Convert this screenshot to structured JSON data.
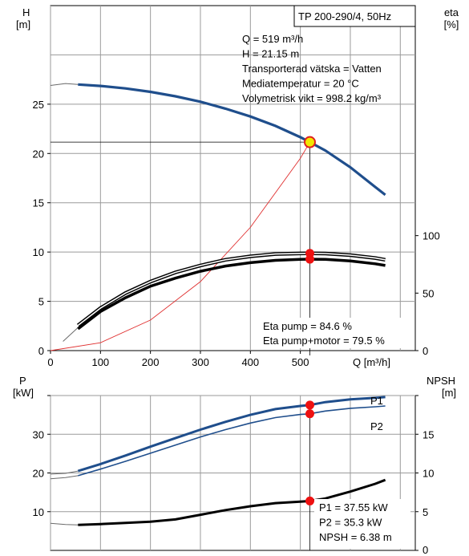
{
  "chart_data": [
    {
      "type": "line",
      "title": "TP 200-290/4, 50Hz",
      "xlabel": "Q [m³/h]",
      "ylabel_left_top": "H",
      "ylabel_left_unit": "[m]",
      "ylabel_right_top": "eta",
      "ylabel_right_unit": "[%]",
      "xlim": [
        0,
        730
      ],
      "ylim": [
        0,
        35
      ],
      "ylim_right": [
        0,
        300
      ],
      "x_ticks": [
        "0",
        "100",
        "200",
        "300",
        "400",
        "500",
        "Q [m³/h]"
      ],
      "y_ticks": [
        "0",
        "5",
        "10",
        "15",
        "20",
        "25"
      ],
      "y_ticks_right": [
        "0",
        "50",
        "100"
      ],
      "grid": true,
      "info_lines": [
        "Q = 519 m³/h",
        "H = 21.15 m",
        "Transporterad vätska = Vatten",
        "Mediatemperatur = 20 °C",
        "Volymetrisk vikt = 998.2 kg/m³"
      ],
      "eta_lines": [
        "Eta pump = 84.6 %",
        "Eta pump+motor = 79.5 %"
      ],
      "series": [
        {
          "name": "",
          "axis": "left",
          "color": "#1f4e8c",
          "x": [
            55,
            100,
            150,
            200,
            250,
            300,
            350,
            400,
            450,
            500,
            519,
            550,
            600,
            650,
            670
          ],
          "y": [
            27.0,
            26.85,
            26.6,
            26.25,
            25.8,
            25.25,
            24.55,
            23.75,
            22.8,
            21.65,
            21.15,
            20.3,
            18.6,
            16.6,
            15.8
          ]
        },
        {
          "name": "",
          "axis": "right",
          "color": "#000000",
          "x": [
            55,
            100,
            150,
            200,
            250,
            300,
            350,
            400,
            450,
            500,
            519,
            550,
            600,
            650,
            670
          ],
          "y": [
            22,
            37,
            50,
            60,
            68,
            74,
            79,
            82,
            84,
            84.5,
            84.6,
            84.4,
            83,
            80.5,
            79
          ]
        },
        {
          "name": "",
          "axis": "right",
          "color": "#000000",
          "x": [
            55,
            100,
            150,
            200,
            250,
            300,
            350,
            400,
            450,
            500,
            519,
            550,
            600,
            650,
            670
          ],
          "y": [
            19,
            34,
            46,
            56,
            63,
            69,
            73.5,
            76.5,
            78.5,
            79.4,
            79.5,
            79.3,
            78,
            75.5,
            74
          ]
        }
      ],
      "faint_extension": {
        "color": "#6a6a6a",
        "head": {
          "x": [
            0,
            30,
            55
          ],
          "y": [
            26.9,
            27.1,
            27.0
          ]
        },
        "eta": {
          "x": [
            25,
            55
          ],
          "y": [
            8,
            20
          ]
        }
      },
      "system_curve": {
        "color": "#e03030",
        "x": [
          0,
          100,
          200,
          300,
          400,
          500,
          519
        ],
        "y": [
          0,
          0.8,
          3.1,
          7.0,
          12.5,
          19.5,
          21.15
        ]
      },
      "operating_point": {
        "x": 519,
        "head": 21.15,
        "eta_pump": 84.6,
        "eta_total": 79.5
      }
    },
    {
      "type": "line",
      "ylabel_left_top": "P",
      "ylabel_left_unit": "[kW]",
      "ylabel_right_top": "NPSH",
      "ylabel_right_unit": "[m]",
      "xlim": [
        0,
        730
      ],
      "ylim": [
        0,
        40
      ],
      "ylim_right": [
        0,
        20
      ],
      "y_ticks": [
        "10",
        "20",
        "30"
      ],
      "y_ticks_right": [
        "0",
        "5",
        "10",
        "15"
      ],
      "grid": true,
      "legend": [
        "P1",
        "P2"
      ],
      "readout_lines": [
        "P1 = 37.55 kW",
        "P2 = 35.3 kW",
        "NPSH = 6.38 m"
      ],
      "series": [
        {
          "name": "P1",
          "axis": "left",
          "color": "#1f4e8c",
          "x": [
            55,
            100,
            150,
            200,
            250,
            300,
            350,
            400,
            450,
            500,
            519,
            550,
            600,
            650,
            670
          ],
          "y": [
            20.5,
            22.3,
            24.5,
            26.8,
            29.0,
            31.2,
            33.2,
            35.0,
            36.5,
            37.3,
            37.55,
            38.3,
            39.0,
            39.4,
            39.6
          ]
        },
        {
          "name": "P2",
          "axis": "left",
          "color": "#1f4e8c",
          "x": [
            55,
            100,
            150,
            200,
            250,
            300,
            350,
            400,
            450,
            500,
            519,
            550,
            600,
            650,
            670
          ],
          "y": [
            19.3,
            21.0,
            23.0,
            25.1,
            27.2,
            29.3,
            31.2,
            32.9,
            34.3,
            35.1,
            35.3,
            36.0,
            36.7,
            37.1,
            37.3
          ]
        },
        {
          "name": "",
          "axis": "right",
          "color": "#000000",
          "x": [
            55,
            100,
            150,
            200,
            250,
            300,
            350,
            400,
            450,
            500,
            519,
            550,
            600,
            650,
            670
          ],
          "y": [
            3.3,
            3.4,
            3.55,
            3.7,
            4.0,
            4.6,
            5.2,
            5.7,
            6.1,
            6.3,
            6.38,
            6.7,
            7.6,
            8.6,
            9.1
          ]
        }
      ],
      "faint_extension": {
        "color": "#6a6a6a",
        "p1": {
          "x": [
            0,
            30,
            55
          ],
          "y": [
            19.7,
            19.9,
            20.5
          ]
        },
        "p2": {
          "x": [
            0,
            30,
            55
          ],
          "y": [
            18.5,
            18.8,
            19.3
          ]
        },
        "npsh": {
          "x": [
            0,
            30,
            55
          ],
          "y": [
            3.5,
            3.35,
            3.3
          ]
        }
      },
      "operating_point": {
        "x": 519,
        "p1": 37.55,
        "p2": 35.3,
        "npsh": 6.38
      }
    }
  ]
}
